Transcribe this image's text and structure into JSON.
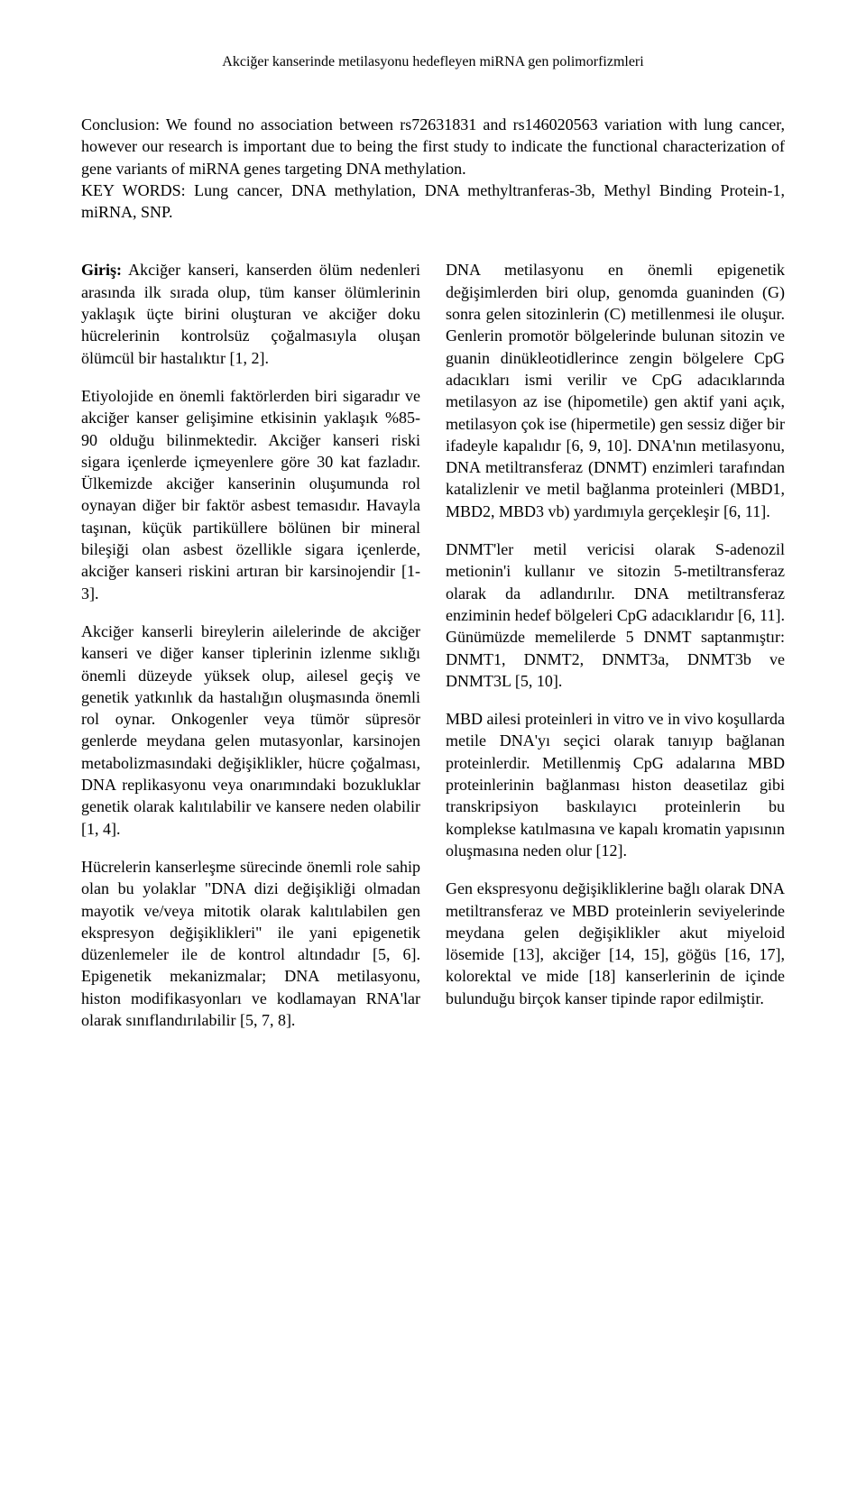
{
  "running_head": "Akciğer kanserinde metilasyonu hedefleyen miRNA gen polimorfizmleri",
  "abstract": {
    "conclusion": "Conclusion: We found no association between rs72631831 and rs146020563 variation with lung cancer, however our research is important due to being the first study to indicate the functional characterization of gene variants of miRNA genes targeting DNA methylation.",
    "keywords": "KEY WORDS: Lung cancer, DNA methylation, DNA methyltranferas-3b, Methyl Binding Protein-1, miRNA, SNP."
  },
  "left": {
    "giris_label": "Giriş:",
    "p1": " Akciğer kanseri, kanserden ölüm nedenleri arasında ilk sırada olup, tüm kanser ölümlerinin yaklaşık üçte birini oluşturan ve akciğer doku hücrelerinin kontrolsüz çoğalmasıyla oluşan ölümcül bir hastalıktır [1, 2].",
    "p2": "Etiyolojide en önemli faktörlerden biri sigaradır ve akciğer kanser gelişimine etkisinin yaklaşık %85-90 olduğu bilinmektedir. Akciğer kanseri riski sigara içenlerde içmeyenlere göre 30 kat fazladır. Ülkemizde akciğer kanserinin oluşumunda rol oynayan diğer bir faktör asbest temasıdır. Havayla taşınan, küçük partiküllere bölünen bir mineral bileşiği olan asbest özellikle sigara içenlerde, akciğer kanseri riskini artıran bir karsinojendir [1-3].",
    "p3": "Akciğer kanserli bireylerin ailelerinde de akciğer kanseri ve diğer kanser tiplerinin izlenme sıklığı önemli düzeyde yüksek olup, ailesel geçiş ve genetik yatkınlık da hastalığın oluşmasında önemli rol oynar. Onkogenler veya tümör süpresör genlerde meydana gelen mutasyonlar, karsinojen metabolizmasındaki değişiklikler, hücre çoğalması, DNA replikasyonu veya onarımındaki bozukluklar genetik olarak kalıtılabilir ve kansere neden olabilir [1, 4].",
    "p4": "Hücrelerin kanserleşme sürecinde önemli role sahip olan bu yolaklar \"DNA dizi değişikliği olmadan mayotik ve/veya mitotik olarak kalıtılabilen gen ekspresyon değişiklikleri\" ile yani epigenetik düzenlemeler ile de kontrol altındadır [5, 6]. Epigenetik mekanizmalar; DNA metilasyonu, histon modifikasyonları ve kodlamayan RNA'lar olarak sınıflandırılabilir [5, 7, 8]."
  },
  "right": {
    "p1": "DNA metilasyonu en önemli epigenetik değişimlerden biri olup, genomda guaninden (G) sonra gelen sitozinlerin (C) metillenmesi ile oluşur. Genlerin promotör bölgelerinde bulunan sitozin ve guanin dinükleotidlerince zengin bölgelere CpG adacıkları ismi verilir ve CpG adacıklarında metilasyon az ise (hipometile) gen aktif yani açık, metilasyon çok ise (hipermetile) gen sessiz diğer bir ifadeyle kapalıdır [6, 9, 10]. DNA'nın metilasyonu, DNA metiltransferaz (DNMT) enzimleri tarafından katalizlenir ve metil bağlanma proteinleri (MBD1, MBD2, MBD3 vb) yardımıyla gerçekleşir [6, 11].",
    "p2": "DNMT'ler metil vericisi olarak S-adenozil metionin'i kullanır ve sitozin 5-metiltransferaz olarak da adlandırılır. DNA metiltransferaz enziminin hedef bölgeleri CpG adacıklarıdır [6, 11]. Günümüzde memelilerde 5 DNMT saptanmıştır: DNMT1, DNMT2, DNMT3a, DNMT3b ve DNMT3L [5, 10].",
    "p3": "MBD ailesi proteinleri in vitro ve in vivo koşullarda metile DNA'yı seçici olarak tanıyıp bağlanan proteinlerdir. Metillenmiş CpG adalarına MBD proteinlerinin bağlanması histon deasetilaz gibi transkripsiyon baskılayıcı proteinlerin bu komplekse katılmasına ve kapalı kromatin yapısının oluşmasına neden olur [12].",
    "p4": "Gen ekspresyonu değişikliklerine bağlı olarak DNA metiltransferaz ve MBD proteinlerin seviyelerinde meydana gelen değişiklikler akut miyeloid lösemide [13], akciğer [14, 15], göğüs [16, 17], kolorektal ve mide [18] kanserlerinin de içinde bulunduğu birçok kanser tipinde rapor edilmiştir."
  }
}
